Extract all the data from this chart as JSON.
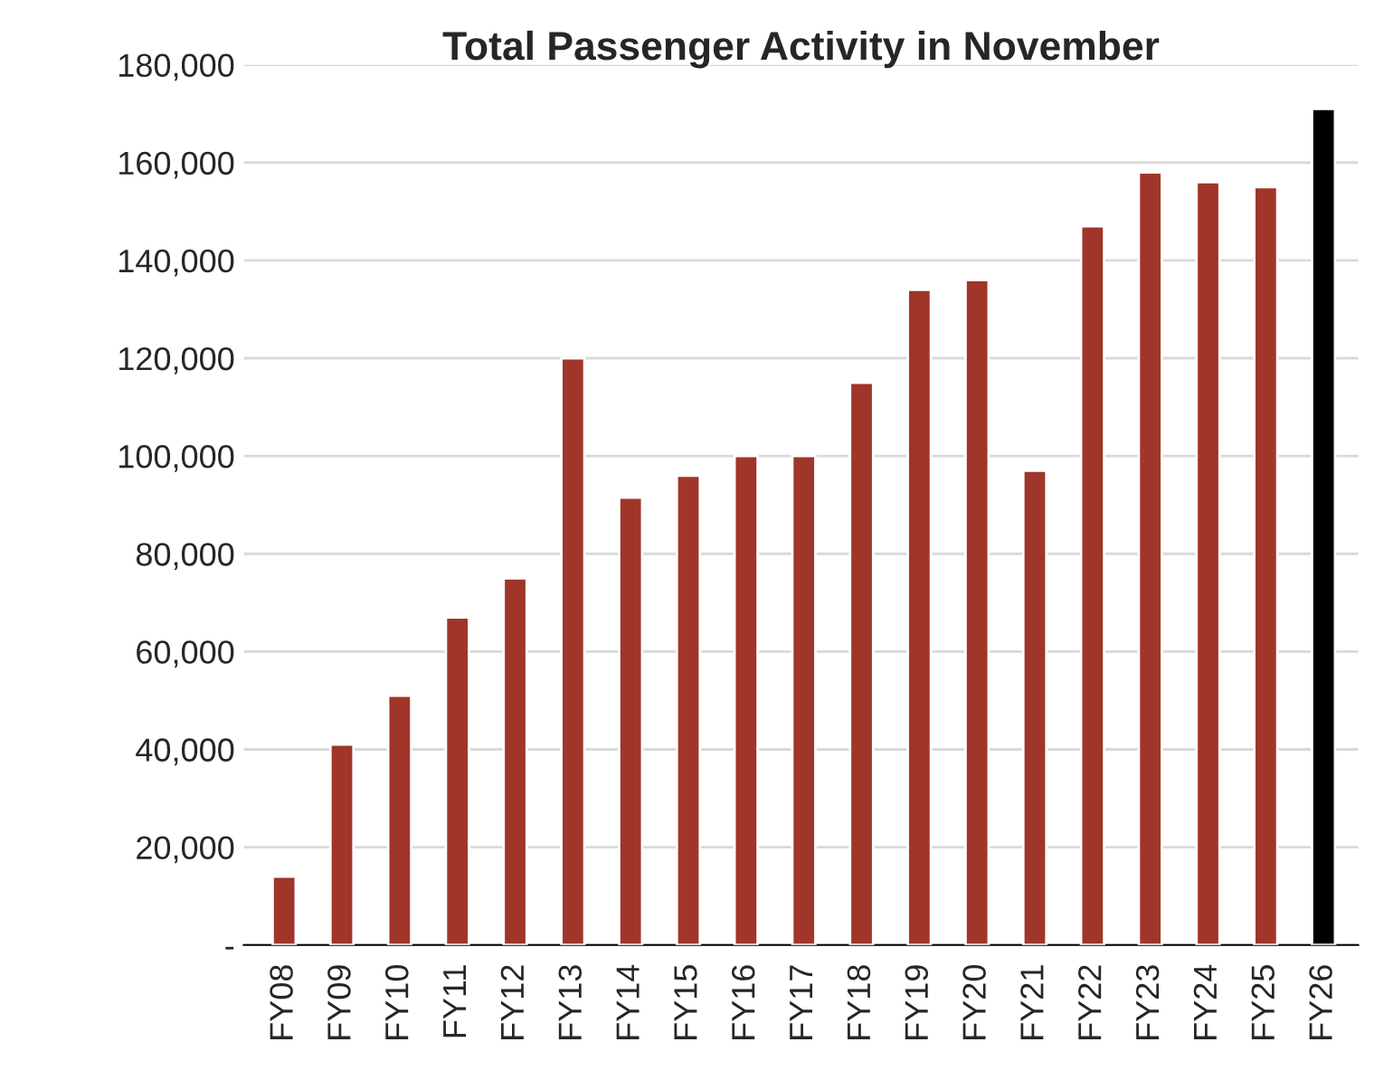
{
  "chart_data": {
    "type": "bar",
    "title": "Total Passenger Activity in November",
    "categories": [
      "FY08",
      "FY09",
      "FY10",
      "FY11",
      "FY12",
      "FY13",
      "FY14",
      "FY15",
      "FY16",
      "FY17",
      "FY18",
      "FY19",
      "FY20",
      "FY21",
      "FY22",
      "FY23",
      "FY24",
      "FY25",
      "FY26"
    ],
    "values": [
      14000,
      41000,
      51000,
      67000,
      75000,
      120000,
      91500,
      96000,
      100000,
      100000,
      115000,
      134000,
      136000,
      97000,
      147000,
      158000,
      156000,
      155000,
      171000
    ],
    "colors": [
      "#a0352a",
      "#a0352a",
      "#a0352a",
      "#a0352a",
      "#a0352a",
      "#a0352a",
      "#a0352a",
      "#a0352a",
      "#a0352a",
      "#a0352a",
      "#a0352a",
      "#a0352a",
      "#a0352a",
      "#a0352a",
      "#a0352a",
      "#a0352a",
      "#a0352a",
      "#a0352a",
      "#000000"
    ],
    "ylim": [
      0,
      180000
    ],
    "yticks": [
      {
        "value": 0,
        "label": "-"
      },
      {
        "value": 20000,
        "label": "20,000"
      },
      {
        "value": 40000,
        "label": "40,000"
      },
      {
        "value": 60000,
        "label": "60,000"
      },
      {
        "value": 80000,
        "label": "80,000"
      },
      {
        "value": 100000,
        "label": "100,000"
      },
      {
        "value": 120000,
        "label": "120,000"
      },
      {
        "value": 140000,
        "label": "140,000"
      },
      {
        "value": 160000,
        "label": "160,000"
      },
      {
        "value": 180000,
        "label": "180,000"
      }
    ],
    "grid": "y"
  }
}
